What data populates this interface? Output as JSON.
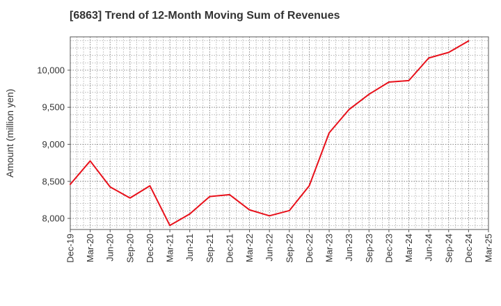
{
  "chart_data": {
    "type": "line",
    "title": "[6863]  Trend of 12-Month Moving Sum of Revenues",
    "ylabel": "Amount (million yen)",
    "xlabel": "",
    "categories": [
      "Dec-19",
      "Mar-20",
      "Jun-20",
      "Sep-20",
      "Dec-20",
      "Mar-21",
      "Jun-21",
      "Sep-21",
      "Dec-21",
      "Mar-22",
      "Jun-22",
      "Sep-22",
      "Dec-22",
      "Mar-23",
      "Jun-23",
      "Sep-23",
      "Dec-23",
      "Mar-24",
      "Jun-24",
      "Sep-24",
      "Dec-24",
      "Mar-25"
    ],
    "series": [
      {
        "color": "#e8101a",
        "values": [
          8460,
          8775,
          8425,
          8275,
          8440,
          7905,
          8060,
          8295,
          8320,
          8115,
          8035,
          8105,
          8440,
          9155,
          9470,
          9675,
          9840,
          9860,
          10165,
          10240,
          10395,
          null
        ]
      }
    ],
    "yticks": [
      8000,
      8500,
      9000,
      9500,
      10000
    ],
    "ytick_labels": [
      "8,000",
      "8,500",
      "9,000",
      "9,500",
      "10,000"
    ],
    "ylim": [
      7850,
      10450
    ],
    "grid": true,
    "legend": "none"
  }
}
